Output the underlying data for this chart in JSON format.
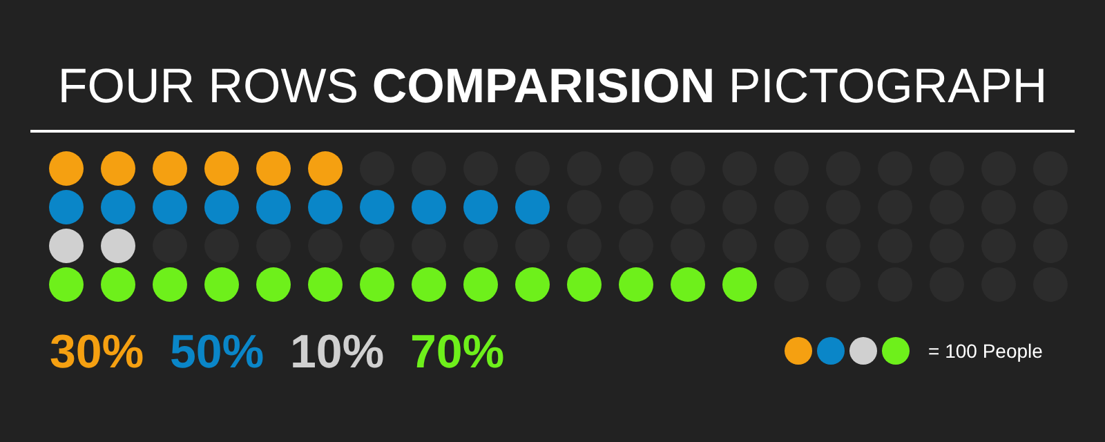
{
  "chart_data": {
    "type": "other",
    "title": "FOUR ROWS COMPARISION PICTOGRAPH",
    "categories": [
      null,
      null,
      null,
      null
    ],
    "values": [
      30,
      50,
      10,
      70
    ],
    "colors": [
      "#f5a011",
      "#0a86c8",
      "#d0d0d0",
      "#6ef01b"
    ],
    "value_labels": [
      "30%",
      "50%",
      "10%",
      "70%"
    ],
    "annotations": [
      "= 100 People"
    ]
  }
}
